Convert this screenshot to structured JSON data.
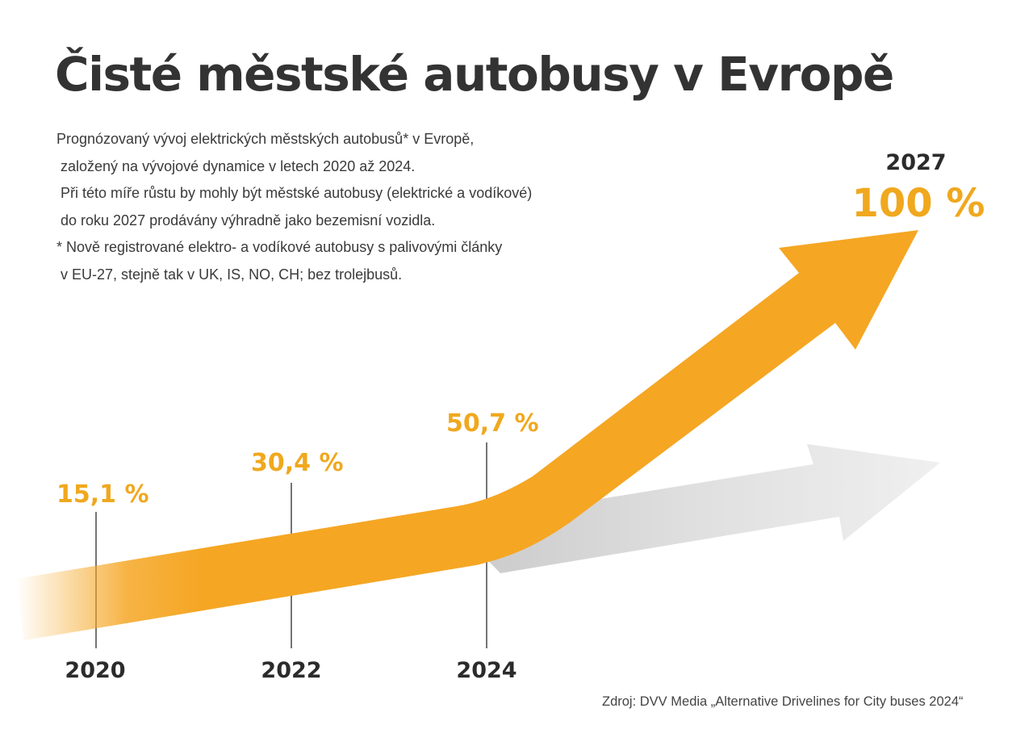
{
  "title": "Čisté městské autobusy v Evropě",
  "description": [
    "Prognózovaný vývoj elektrických městských autobusů* v Evropě,",
    " založený na vývojové dynamice v letech 2020 až 2024.",
    " Při této míře růstu by mohly být městské autobusy (elektrické a vodíkové)",
    " do roku 2027 prodávány výhradně jako bezemisní vozidla.",
    "* Nově registrované elektro- a vodíkové autobusy s palivovými články",
    " v EU-27, stejně tak v UK, IS, NO, CH; bez trolejbusů."
  ],
  "source": "Zdroj: DVV Media „Alternative Drivelines for City buses 2024“",
  "colors": {
    "accent": "#f5a623",
    "label": "#f0a81e",
    "grey_arrow": "#d9d9d9",
    "text": "#2b2b2b"
  },
  "chart_data": {
    "type": "line",
    "title": "Čisté městské autobusy v Evropě",
    "unit": "%",
    "x": [
      2020,
      2022,
      2024,
      2027
    ],
    "y": [
      15.1,
      30.4,
      50.7,
      100
    ],
    "labels": [
      {
        "year": "2020",
        "value": "15,1 %"
      },
      {
        "year": "2022",
        "value": "30,4 %"
      },
      {
        "year": "2024",
        "value": "50,7 %"
      },
      {
        "year": "2027",
        "value": "100 %"
      }
    ],
    "series": [
      {
        "name": "forecast",
        "values": [
          15.1,
          30.4,
          50.7,
          100
        ],
        "color": "#f5a623"
      },
      {
        "name": "trend",
        "color": "#d9d9d9"
      }
    ],
    "ylim": [
      0,
      100
    ]
  }
}
